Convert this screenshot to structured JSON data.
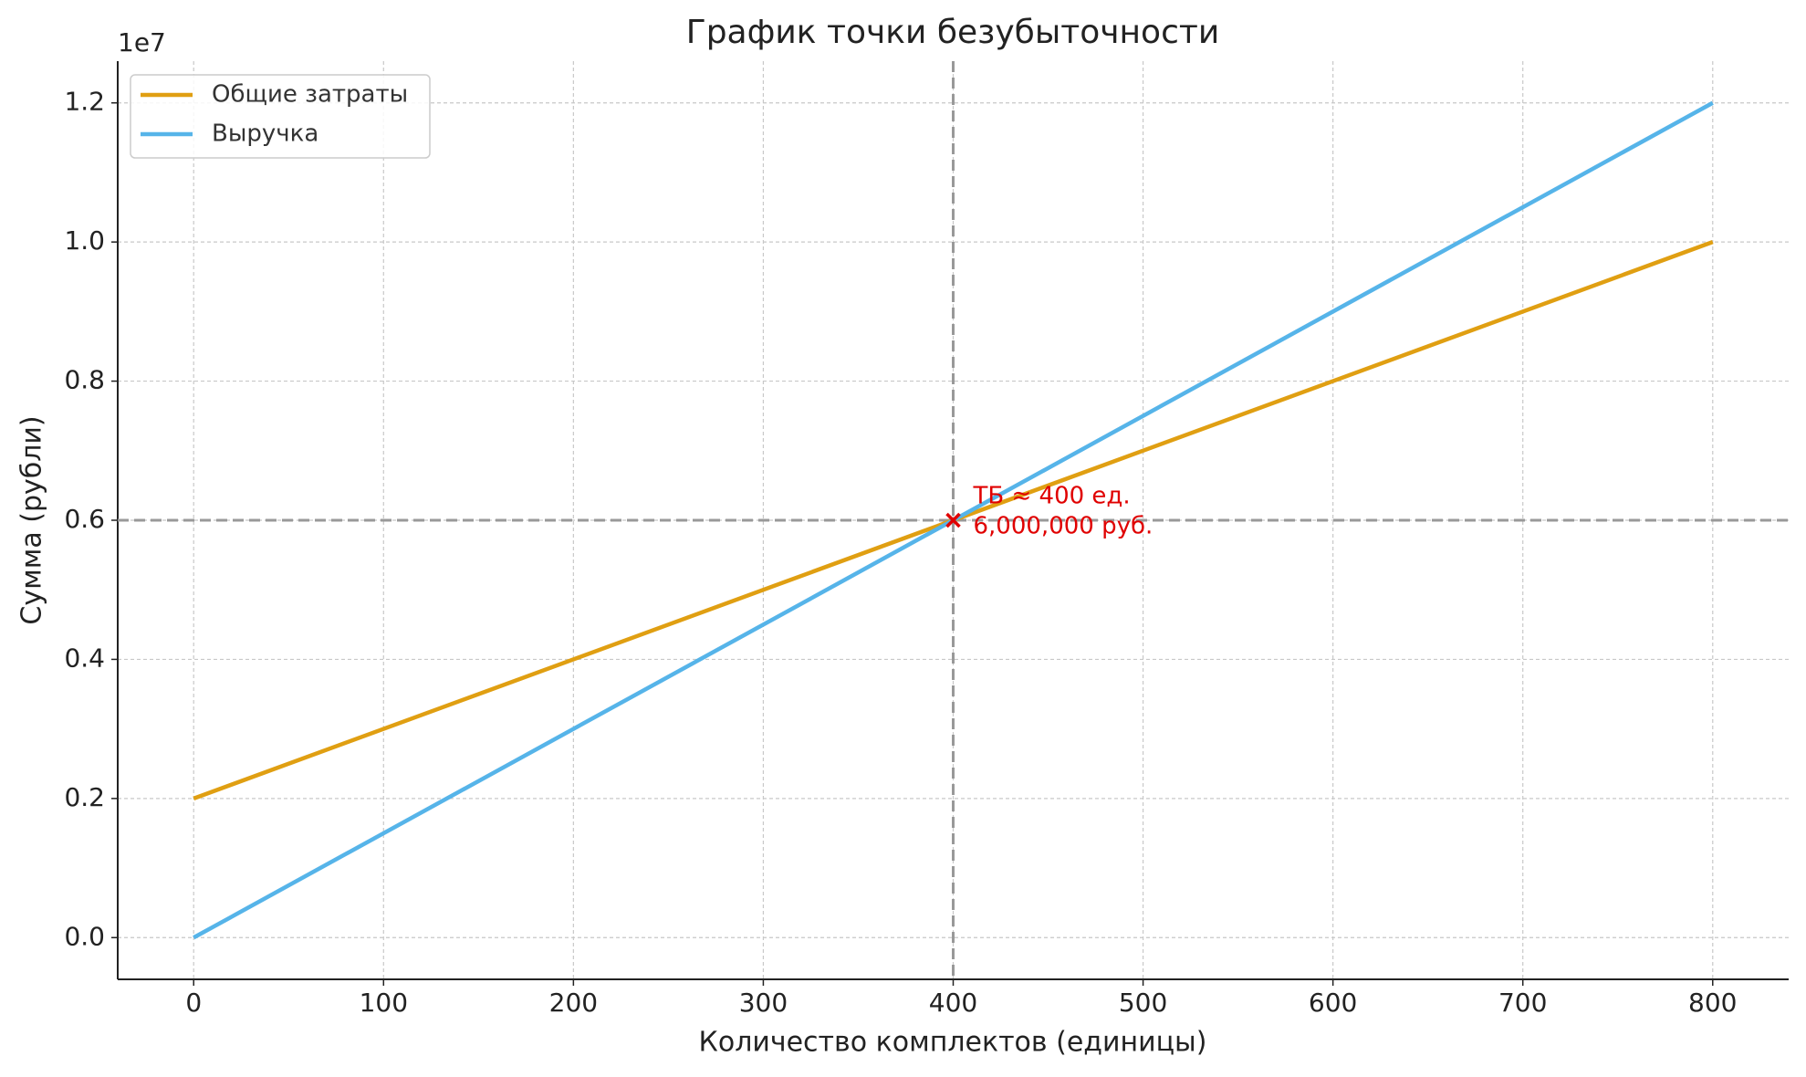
{
  "chart_data": {
    "type": "line",
    "title": "График точки безубыточности",
    "xlabel": "Количество комплектов (единицы)",
    "ylabel": "Сумма (рубли)",
    "y_offset_label": "1e7",
    "x": [
      0,
      800
    ],
    "series": [
      {
        "name": "Общие затраты",
        "color": "#e09f12",
        "values": [
          2000000,
          10000000
        ]
      },
      {
        "name": "Выручка",
        "color": "#56b4e9",
        "values": [
          0,
          12000000
        ]
      }
    ],
    "xlim": [
      -40,
      840
    ],
    "ylim": [
      -600000,
      12600000
    ],
    "xticks": [
      0,
      100,
      200,
      300,
      400,
      500,
      600,
      700,
      800
    ],
    "yticks": [
      {
        "value": 0,
        "label": "0.0"
      },
      {
        "value": 2000000,
        "label": "0.2"
      },
      {
        "value": 4000000,
        "label": "0.4"
      },
      {
        "value": 6000000,
        "label": "0.6"
      },
      {
        "value": 8000000,
        "label": "0.8"
      },
      {
        "value": 10000000,
        "label": "1.0"
      },
      {
        "value": 12000000,
        "label": "1.2"
      }
    ],
    "grid": true,
    "legend": "upper-left",
    "break_even": {
      "x": 400,
      "y": 6000000,
      "color": "#e00000",
      "label": [
        "ТБ ≈ 400 ед.",
        "6,000,000 руб."
      ]
    }
  }
}
